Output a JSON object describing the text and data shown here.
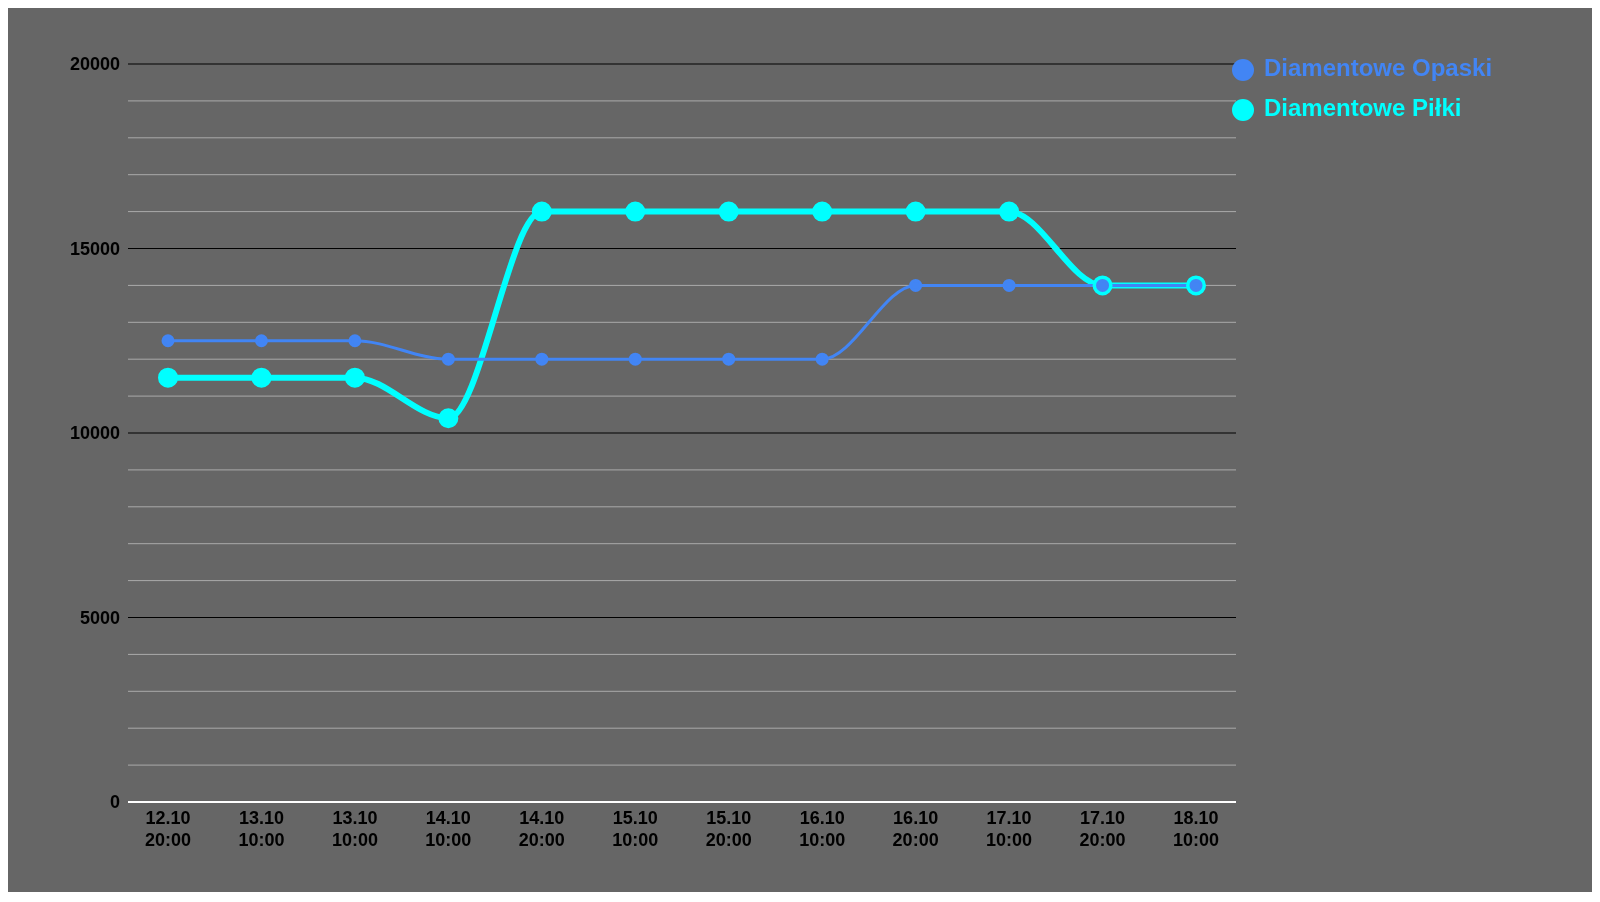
{
  "chart_data": {
    "type": "line",
    "categories": [
      "12.10\n20:00",
      "13.10\n10:00",
      "13.10\n10:00",
      "14.10\n10:00",
      "14.10\n20:00",
      "15.10\n10:00",
      "15.10\n20:00",
      "16.10\n10:00",
      "16.10\n20:00",
      "17.10\n10:00",
      "17.10\n20:00",
      "18.10\n10:00"
    ],
    "series": [
      {
        "name": "Diamentowe Piłki",
        "color": "#00ffff",
        "values": [
          11500,
          11500,
          11500,
          10400,
          16000,
          16000,
          16000,
          16000,
          16000,
          16000,
          14000,
          14000
        ]
      },
      {
        "name": "Diamentowe Opaski",
        "color": "#4285f4",
        "values": [
          12500,
          12500,
          12500,
          12000,
          12000,
          12000,
          12000,
          12000,
          14000,
          14000,
          14000,
          14000
        ]
      }
    ],
    "ylim": [
      0,
      20000
    ],
    "yticks": [
      0,
      {
        "value": 1000,
        "label": null
      },
      {
        "value": 2000,
        "label": null
      },
      {
        "value": 3000,
        "label": null
      },
      {
        "value": 4000,
        "label": null
      },
      5000,
      {
        "value": 6000,
        "label": null
      },
      {
        "value": 7000,
        "label": null
      },
      {
        "value": 8000,
        "label": null
      },
      {
        "value": 9000,
        "label": null
      },
      10000,
      {
        "value": 11000,
        "label": null
      },
      {
        "value": 12000,
        "label": null
      },
      {
        "value": 13000,
        "label": null
      },
      {
        "value": 14000,
        "label": null
      },
      15000,
      {
        "value": 16000,
        "label": null
      },
      {
        "value": 17000,
        "label": null
      },
      {
        "value": 18000,
        "label": null
      },
      {
        "value": 19000,
        "label": null
      },
      20000
    ],
    "grid": true,
    "legend": "top right",
    "marker": "circle",
    "line_style": "solid"
  }
}
